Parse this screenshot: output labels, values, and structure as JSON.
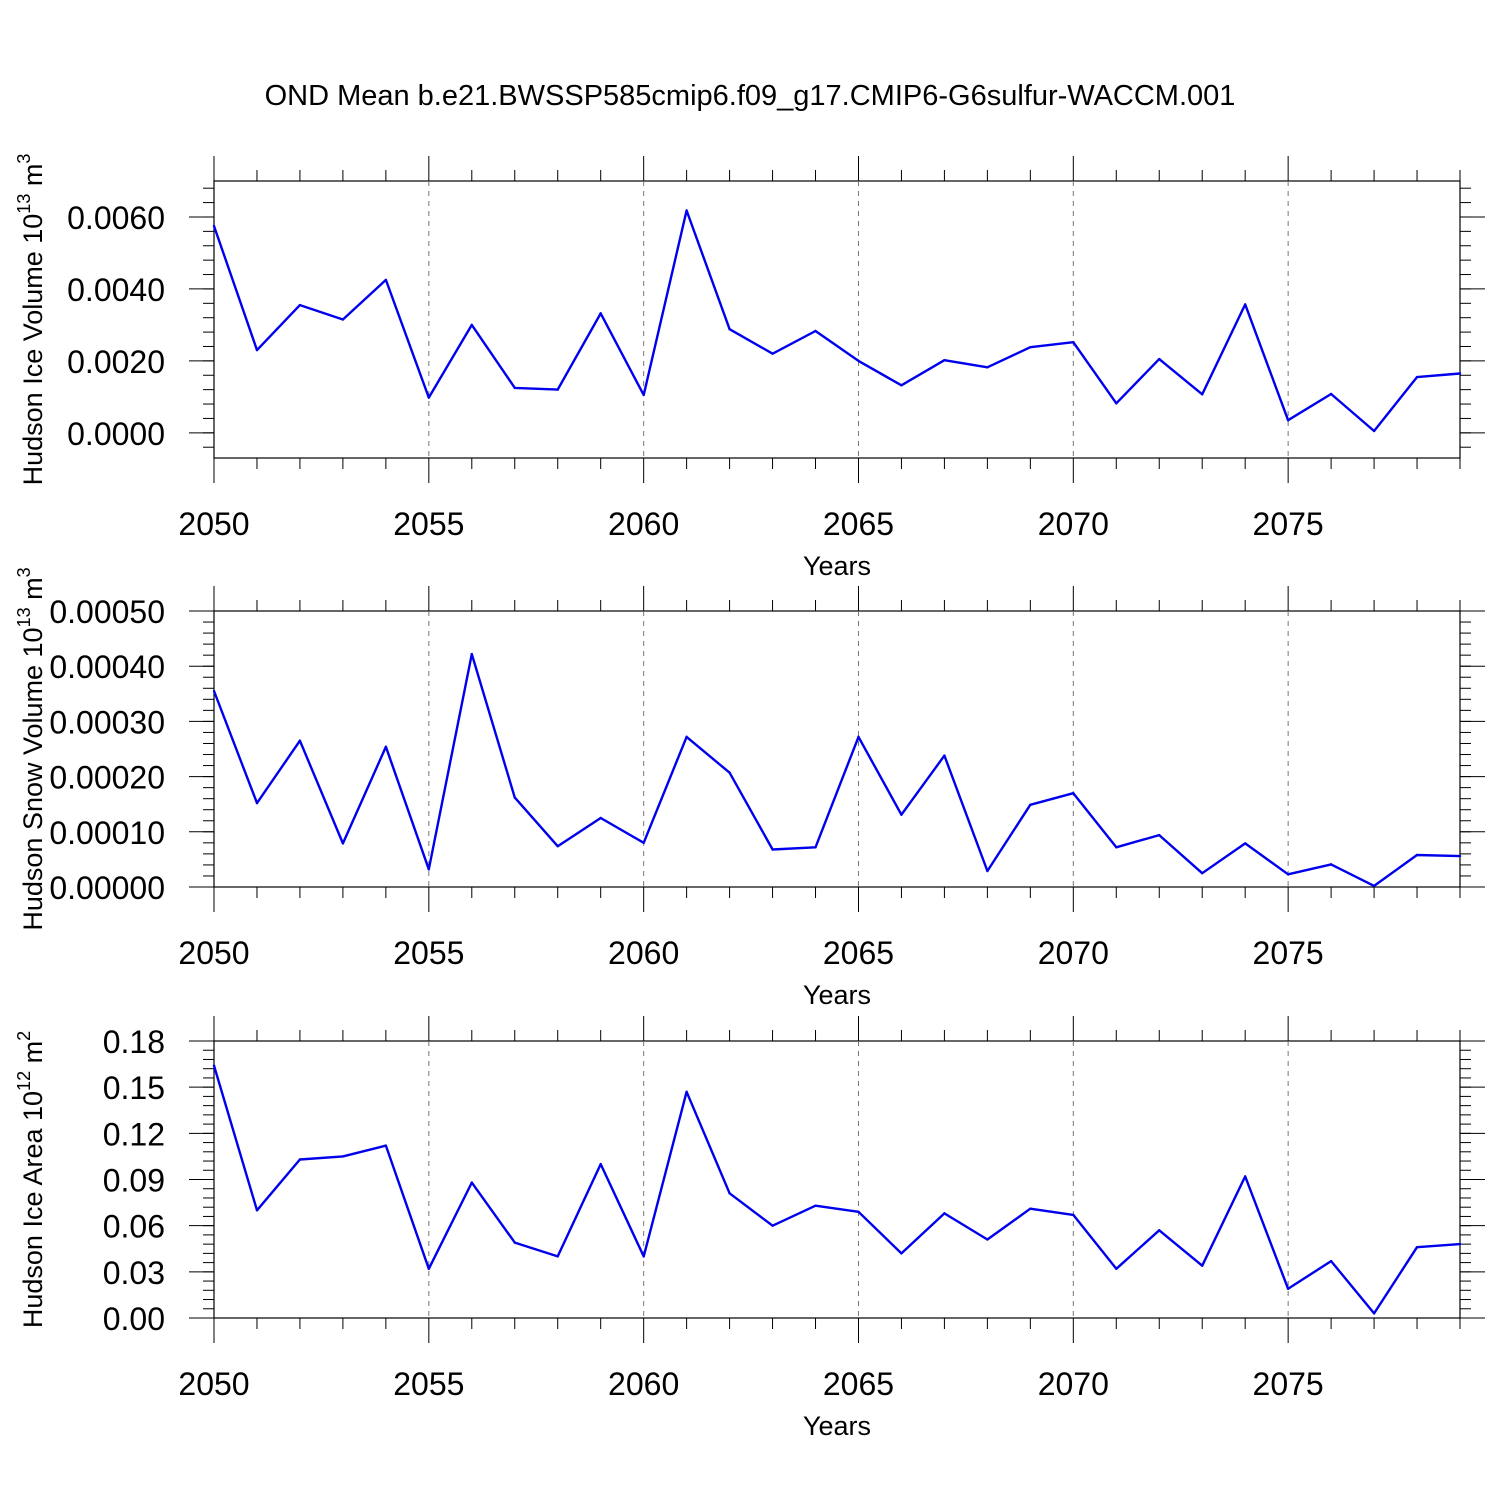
{
  "title": "OND Mean b.e21.BWSSP585cmip6.f09_g17.CMIP6-G6sulfur-WACCM.001",
  "chart_data": [
    {
      "type": "line",
      "xlabel": "Years",
      "ylabel": "Hudson Ice Volume 10",
      "ylabel_exp": "13",
      "ylabel_unit": " m",
      "ylabel_unit_exp": "3",
      "xlim": [
        2050,
        2079
      ],
      "ylim": [
        -0.0007,
        0.007
      ],
      "x_ticks": [
        "2050",
        "2055",
        "2060",
        "2065",
        "2070",
        "2075"
      ],
      "y_ticks": [
        "0.0000",
        "0.0020",
        "0.0040",
        "0.0060"
      ],
      "color": "#0000ee",
      "x": [
        2050,
        2051,
        2052,
        2053,
        2054,
        2055,
        2056,
        2057,
        2058,
        2059,
        2060,
        2061,
        2062,
        2063,
        2064,
        2065,
        2066,
        2067,
        2068,
        2069,
        2070,
        2071,
        2072,
        2073,
        2074,
        2075,
        2076,
        2077,
        2078,
        2079
      ],
      "y": [
        0.00575,
        0.0023,
        0.00355,
        0.00315,
        0.00425,
        0.00098,
        0.003,
        0.00125,
        0.0012,
        0.00332,
        0.00105,
        0.00618,
        0.00288,
        0.0022,
        0.00283,
        0.002,
        0.00132,
        0.00202,
        0.00182,
        0.00238,
        0.00252,
        0.00082,
        0.00205,
        0.00107,
        0.00357,
        0.00035,
        0.00108,
        5e-05,
        0.00155,
        0.00165
      ]
    },
    {
      "type": "line",
      "xlabel": "Years",
      "ylabel": "Hudson Snow Volume 10",
      "ylabel_exp": "13",
      "ylabel_unit": " m",
      "ylabel_unit_exp": "3",
      "xlim": [
        2050,
        2079
      ],
      "ylim": [
        0.0,
        0.0005
      ],
      "x_ticks": [
        "2050",
        "2055",
        "2060",
        "2065",
        "2070",
        "2075"
      ],
      "y_ticks": [
        "0.00000",
        "0.00010",
        "0.00020",
        "0.00030",
        "0.00040",
        "0.00050"
      ],
      "color": "#0000ee",
      "x": [
        2050,
        2051,
        2052,
        2053,
        2054,
        2055,
        2056,
        2057,
        2058,
        2059,
        2060,
        2061,
        2062,
        2063,
        2064,
        2065,
        2066,
        2067,
        2068,
        2069,
        2070,
        2071,
        2072,
        2073,
        2074,
        2075,
        2076,
        2077,
        2078,
        2079
      ],
      "y": [
        0.000355,
        0.000152,
        0.000265,
        7.9e-05,
        0.000254,
        3.2e-05,
        0.000422,
        0.000162,
        7.4e-05,
        0.000125,
        8e-05,
        0.000272,
        0.000207,
        6.8e-05,
        7.2e-05,
        0.000272,
        0.000131,
        0.000238,
        2.9e-05,
        0.000149,
        0.00017,
        7.2e-05,
        9.4e-05,
        2.5e-05,
        7.9e-05,
        2.3e-05,
        4.1e-05,
        2e-06,
        5.8e-05,
        5.6e-05
      ]
    },
    {
      "type": "line",
      "xlabel": "Years",
      "ylabel": "Hudson Ice Area 10",
      "ylabel_exp": "12",
      "ylabel_unit": " m",
      "ylabel_unit_exp": "2",
      "xlim": [
        2050,
        2079
      ],
      "ylim": [
        0.0,
        0.18
      ],
      "x_ticks": [
        "2050",
        "2055",
        "2060",
        "2065",
        "2070",
        "2075"
      ],
      "y_ticks": [
        "0.00",
        "0.03",
        "0.06",
        "0.09",
        "0.12",
        "0.15",
        "0.18"
      ],
      "color": "#0000ee",
      "x": [
        2050,
        2051,
        2052,
        2053,
        2054,
        2055,
        2056,
        2057,
        2058,
        2059,
        2060,
        2061,
        2062,
        2063,
        2064,
        2065,
        2066,
        2067,
        2068,
        2069,
        2070,
        2071,
        2072,
        2073,
        2074,
        2075,
        2076,
        2077,
        2078,
        2079
      ],
      "y": [
        0.164,
        0.07,
        0.103,
        0.105,
        0.112,
        0.032,
        0.088,
        0.049,
        0.04,
        0.1,
        0.04,
        0.147,
        0.081,
        0.06,
        0.073,
        0.069,
        0.042,
        0.068,
        0.051,
        0.071,
        0.067,
        0.032,
        0.057,
        0.034,
        0.092,
        0.019,
        0.037,
        0.003,
        0.046,
        0.048
      ]
    }
  ]
}
